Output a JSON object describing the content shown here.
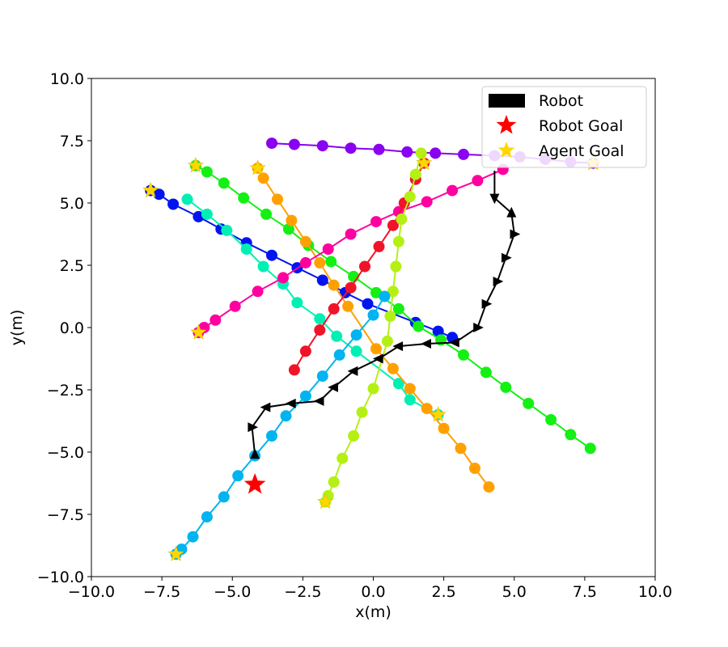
{
  "chart_data": {
    "type": "scatter",
    "title": "",
    "xlabel": "x(m)",
    "ylabel": "y(m)",
    "xlim": [
      -10,
      10
    ],
    "ylim": [
      -10,
      10
    ],
    "xticks": [
      -10,
      -7.5,
      -5,
      -2.5,
      0,
      2.5,
      5,
      7.5,
      10
    ],
    "yticks": [
      -10,
      -7.5,
      -5,
      -2.5,
      0,
      2.5,
      5,
      7.5,
      10
    ],
    "xtick_labels": [
      "−10.0",
      "−7.5",
      "−5.0",
      "−2.5",
      "0.0",
      "2.5",
      "5.0",
      "7.5",
      "10.0"
    ],
    "ytick_labels": [
      "−10.0",
      "−7.5",
      "−5.0",
      "−2.5",
      "0.0",
      "2.5",
      "5.0",
      "7.5",
      "10.0"
    ],
    "grid": false,
    "legend": {
      "placement": "top-right",
      "entries": [
        {
          "label": "Robot",
          "marker": "rectangle",
          "color": "#000000"
        },
        {
          "label": "Robot Goal",
          "marker": "star",
          "color": "#ff0000"
        },
        {
          "label": "Agent Goal",
          "marker": "star",
          "color": "#ffd700"
        }
      ]
    },
    "robot": {
      "color": "#000000",
      "marker": "triangle",
      "path": [
        [
          -4.2,
          -5.1
        ],
        [
          -4.3,
          -4.0
        ],
        [
          -3.8,
          -3.2
        ],
        [
          -2.9,
          -3.05
        ],
        [
          -1.9,
          -2.95
        ],
        [
          -1.4,
          -2.4
        ],
        [
          -0.7,
          -1.75
        ],
        [
          0.2,
          -1.25
        ],
        [
          0.9,
          -0.75
        ],
        [
          1.9,
          -0.65
        ],
        [
          2.9,
          -0.6
        ],
        [
          3.7,
          0.0
        ],
        [
          4.0,
          0.95
        ],
        [
          4.4,
          1.85
        ],
        [
          4.7,
          2.8
        ],
        [
          5.0,
          3.75
        ],
        [
          4.9,
          4.6
        ],
        [
          4.3,
          5.2
        ],
        [
          4.3,
          6.3
        ]
      ],
      "markers": [
        {
          "x": -4.2,
          "y": -5.1,
          "dir": "up"
        },
        {
          "x": -4.3,
          "y": -4.0,
          "dir": "right"
        },
        {
          "x": -3.8,
          "y": -3.2,
          "dir": "left"
        },
        {
          "x": -2.9,
          "y": -3.05,
          "dir": "left"
        },
        {
          "x": -1.9,
          "y": -2.95,
          "dir": "left"
        },
        {
          "x": -1.4,
          "y": -2.4,
          "dir": "left"
        },
        {
          "x": -0.7,
          "y": -1.75,
          "dir": "left"
        },
        {
          "x": 0.2,
          "y": -1.25,
          "dir": "left"
        },
        {
          "x": 0.9,
          "y": -0.75,
          "dir": "left"
        },
        {
          "x": 1.9,
          "y": -0.65,
          "dir": "left"
        },
        {
          "x": 2.9,
          "y": -0.6,
          "dir": "left"
        },
        {
          "x": 3.7,
          "y": 0.0,
          "dir": "right"
        },
        {
          "x": 4.0,
          "y": 0.95,
          "dir": "right"
        },
        {
          "x": 4.4,
          "y": 1.85,
          "dir": "right"
        },
        {
          "x": 4.7,
          "y": 2.8,
          "dir": "right"
        },
        {
          "x": 5.0,
          "y": 3.75,
          "dir": "right"
        },
        {
          "x": 4.9,
          "y": 4.6,
          "dir": "up"
        },
        {
          "x": 4.3,
          "y": 5.2,
          "dir": "down"
        }
      ]
    },
    "robot_goal": {
      "x": -4.2,
      "y": -6.3,
      "color": "#ff0000"
    },
    "agents": [
      {
        "color": "#8a00f0",
        "points": [
          [
            7.8,
            6.6
          ],
          [
            7.0,
            6.65
          ],
          [
            6.1,
            6.75
          ],
          [
            5.2,
            6.85
          ],
          [
            4.3,
            6.9
          ],
          [
            3.2,
            6.95
          ],
          [
            2.2,
            7.0
          ],
          [
            1.2,
            7.05
          ],
          [
            0.2,
            7.15
          ],
          [
            -0.8,
            7.2
          ],
          [
            -1.8,
            7.3
          ],
          [
            -2.8,
            7.35
          ],
          [
            -3.6,
            7.4
          ]
        ],
        "goal": [
          7.8,
          6.6
        ]
      },
      {
        "color": "#0014f0",
        "points": [
          [
            2.8,
            -0.4
          ],
          [
            2.3,
            -0.15
          ],
          [
            1.5,
            0.2
          ],
          [
            -0.2,
            0.95
          ],
          [
            -1.0,
            1.4
          ],
          [
            -1.8,
            1.9
          ],
          [
            -2.7,
            2.4
          ],
          [
            -3.6,
            2.9
          ],
          [
            -4.5,
            3.4
          ],
          [
            -5.4,
            3.95
          ],
          [
            -6.2,
            4.45
          ],
          [
            -7.1,
            4.95
          ],
          [
            -7.6,
            5.35
          ],
          [
            -7.9,
            5.5
          ]
        ],
        "goal": [
          -7.9,
          5.5
        ]
      },
      {
        "color": "#00f0b4",
        "points": [
          [
            2.3,
            -3.5
          ],
          [
            1.3,
            -2.9
          ],
          [
            0.9,
            -2.25
          ],
          [
            -0.6,
            -0.95
          ],
          [
            -1.3,
            -0.35
          ],
          [
            -1.9,
            0.35
          ],
          [
            -2.7,
            1.0
          ],
          [
            -3.2,
            1.75
          ],
          [
            -3.9,
            2.45
          ],
          [
            -4.5,
            3.15
          ],
          [
            -5.2,
            3.9
          ],
          [
            -5.9,
            4.55
          ],
          [
            -6.6,
            5.15
          ]
        ],
        "goal": [
          2.3,
          -3.5
        ]
      },
      {
        "color": "#14f014",
        "points": [
          [
            -6.3,
            6.5
          ],
          [
            -5.9,
            6.25
          ],
          [
            -5.3,
            5.8
          ],
          [
            -4.6,
            5.2
          ],
          [
            -3.8,
            4.55
          ],
          [
            -3.0,
            3.95
          ],
          [
            -2.3,
            3.3
          ],
          [
            -1.5,
            2.65
          ],
          [
            -0.7,
            2.05
          ],
          [
            0.1,
            1.4
          ],
          [
            0.9,
            0.75
          ],
          [
            1.6,
            0.05
          ],
          [
            2.4,
            -0.5
          ],
          [
            3.2,
            -1.1
          ],
          [
            4.0,
            -1.8
          ],
          [
            4.7,
            -2.4
          ],
          [
            5.5,
            -3.05
          ],
          [
            6.3,
            -3.7
          ],
          [
            7.0,
            -4.3
          ],
          [
            7.7,
            -4.85
          ]
        ],
        "goal": [
          -6.3,
          6.5
        ]
      },
      {
        "color": "#ffa000",
        "points": [
          [
            4.1,
            -6.4
          ],
          [
            3.6,
            -5.65
          ],
          [
            3.1,
            -4.85
          ],
          [
            2.5,
            -4.05
          ],
          [
            1.9,
            -3.25
          ],
          [
            1.3,
            -2.45
          ],
          [
            0.7,
            -1.65
          ],
          [
            0.1,
            -0.85
          ],
          [
            -0.9,
            0.85
          ],
          [
            -1.4,
            1.7
          ],
          [
            -1.9,
            2.6
          ],
          [
            -2.4,
            3.45
          ],
          [
            -2.9,
            4.3
          ],
          [
            -3.4,
            5.15
          ],
          [
            -3.9,
            6.0
          ],
          [
            -4.1,
            6.4
          ]
        ],
        "goal": [
          -4.1,
          6.4
        ]
      },
      {
        "color": "#ff00a0",
        "points": [
          [
            -6.2,
            -0.2
          ],
          [
            -6.0,
            0.0
          ],
          [
            -5.6,
            0.3
          ],
          [
            -4.9,
            0.85
          ],
          [
            -4.1,
            1.45
          ],
          [
            -3.2,
            2.0
          ],
          [
            -2.4,
            2.6
          ],
          [
            -1.6,
            3.15
          ],
          [
            -0.8,
            3.75
          ],
          [
            0.1,
            4.25
          ],
          [
            0.9,
            4.65
          ],
          [
            1.9,
            5.05
          ],
          [
            2.8,
            5.5
          ],
          [
            3.7,
            5.9
          ],
          [
            4.6,
            6.35
          ]
        ],
        "goal": [
          -6.2,
          -0.2
        ]
      },
      {
        "color": "#f01428",
        "points": [
          [
            -2.8,
            -1.7
          ],
          [
            -2.4,
            -0.95
          ],
          [
            -1.9,
            -0.1
          ],
          [
            -1.4,
            0.75
          ],
          [
            -0.8,
            1.6
          ],
          [
            -0.3,
            2.45
          ],
          [
            0.2,
            3.25
          ],
          [
            0.7,
            4.1
          ],
          [
            1.1,
            5.0
          ],
          [
            1.5,
            5.95
          ],
          [
            1.8,
            6.6
          ]
        ],
        "goal": [
          1.8,
          6.6
        ]
      },
      {
        "color": "#b4f014",
        "points": [
          [
            -1.7,
            -7.0
          ],
          [
            -1.6,
            -6.75
          ],
          [
            -1.4,
            -6.2
          ],
          [
            -1.1,
            -5.25
          ],
          [
            -0.7,
            -4.35
          ],
          [
            -0.4,
            -3.4
          ],
          [
            0.0,
            -2.45
          ],
          [
            0.5,
            -0.55
          ],
          [
            0.6,
            0.45
          ],
          [
            0.7,
            1.45
          ],
          [
            0.8,
            2.45
          ],
          [
            0.9,
            3.45
          ],
          [
            1.0,
            4.35
          ],
          [
            1.3,
            5.25
          ],
          [
            1.5,
            6.15
          ],
          [
            1.7,
            7.0
          ]
        ],
        "goal": [
          -1.7,
          -7.0
        ]
      },
      {
        "color": "#00b4f0",
        "points": [
          [
            -7.0,
            -9.1
          ],
          [
            -6.8,
            -8.9
          ],
          [
            -6.4,
            -8.4
          ],
          [
            -5.9,
            -7.6
          ],
          [
            -5.3,
            -6.8
          ],
          [
            -4.8,
            -5.95
          ],
          [
            -4.2,
            -5.15
          ],
          [
            -3.6,
            -4.35
          ],
          [
            -3.1,
            -3.55
          ],
          [
            -2.4,
            -2.75
          ],
          [
            -1.8,
            -1.95
          ],
          [
            -1.2,
            -1.1
          ],
          [
            -0.6,
            -0.3
          ],
          [
            0.0,
            0.5
          ],
          [
            0.4,
            1.25
          ]
        ],
        "goal": [
          -7.0,
          -9.1
        ]
      }
    ]
  }
}
